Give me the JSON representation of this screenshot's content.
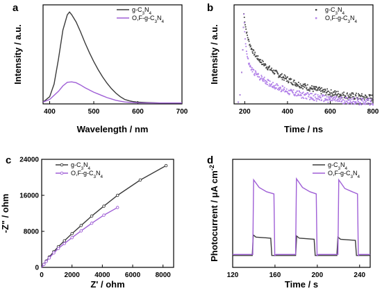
{
  "chart_data": [
    {
      "panel": "a",
      "type": "line",
      "xlabel": "Wavelength / nm",
      "ylabel": "Intensity / a.u.",
      "xlim": [
        385,
        700
      ],
      "ylim": [
        0,
        1.1
      ],
      "xticks": [
        "400",
        "500",
        "600",
        "700"
      ],
      "xtick_values": [
        400,
        500,
        600,
        700
      ],
      "yticks": [],
      "legend": "top-right",
      "series": [
        {
          "name": "g-C₃N₄",
          "color": "#3a3a3a",
          "x": [
            385,
            400,
            410,
            420,
            430,
            440,
            445,
            450,
            460,
            470,
            480,
            490,
            500,
            510,
            520,
            530,
            540,
            550,
            560,
            570,
            580,
            590,
            600,
            620,
            650,
            700
          ],
          "y": [
            0.02,
            0.08,
            0.22,
            0.5,
            0.82,
            0.99,
            1.02,
            0.99,
            0.91,
            0.8,
            0.68,
            0.57,
            0.47,
            0.38,
            0.3,
            0.23,
            0.17,
            0.12,
            0.08,
            0.05,
            0.035,
            0.025,
            0.02,
            0.015,
            0.01,
            0.01
          ]
        },
        {
          "name": "O,F-g-C₃N₄",
          "color": "#9f5fd6",
          "x": [
            385,
            400,
            420,
            430,
            440,
            450,
            460,
            470,
            480,
            490,
            500,
            510,
            520,
            530,
            540,
            550,
            560,
            570,
            580,
            600,
            650,
            700
          ],
          "y": [
            0.02,
            0.05,
            0.14,
            0.2,
            0.24,
            0.245,
            0.235,
            0.21,
            0.18,
            0.155,
            0.13,
            0.11,
            0.09,
            0.07,
            0.055,
            0.04,
            0.03,
            0.022,
            0.018,
            0.012,
            0.01,
            0.01
          ]
        }
      ]
    },
    {
      "panel": "b",
      "type": "scatter",
      "xlabel": "Time / ns",
      "ylabel": "Intensity / a.u.",
      "xlim": [
        150,
        800
      ],
      "ylim": [
        0,
        1.1
      ],
      "xticks": [
        "200",
        "400",
        "600",
        "800"
      ],
      "xtick_values": [
        200,
        400,
        600,
        800
      ],
      "yticks": [],
      "legend": "top-right",
      "series": [
        {
          "name": "g-C₃N₄",
          "color": "#444444",
          "decay_curve": {
            "t0": 196,
            "peak": 1.0,
            "amplitudes": [
              0.34,
              0.66
            ],
            "lifetimes": [
              18,
              210
            ],
            "baseline": 0.03
          }
        },
        {
          "name": "O,F-g-C₃N₄",
          "color": "#b07ee8",
          "decay_curve": {
            "t0": 196,
            "peak": 1.0,
            "amplitudes": [
              0.55,
              0.45
            ],
            "lifetimes": [
              10,
              170
            ],
            "baseline": 0.01
          }
        }
      ]
    },
    {
      "panel": "c",
      "type": "line",
      "xlabel": "Z' / ohm",
      "ylabel": "-Z\" / ohm",
      "xlim": [
        0,
        8700
      ],
      "ylim": [
        0,
        24000
      ],
      "xticks": [
        "0",
        "2000",
        "4000",
        "6000",
        "8000"
      ],
      "xtick_values": [
        0,
        2000,
        4000,
        6000,
        8000
      ],
      "yticks": [
        "0",
        "8000",
        "16000",
        "24000"
      ],
      "ytick_values": [
        0,
        8000,
        16000,
        24000
      ],
      "legend": "top-left",
      "series": [
        {
          "name": "g-C₃N₄",
          "color": "#3a3a3a",
          "x": [
            0,
            150,
            300,
            500,
            800,
            1100,
            1500,
            2000,
            2600,
            3300,
            4100,
            5000,
            6500,
            8200
          ],
          "y": [
            0,
            700,
            1400,
            2300,
            3500,
            4600,
            5900,
            7500,
            9300,
            11400,
            13600,
            16000,
            19400,
            22600
          ]
        },
        {
          "name": "O,F-g-C₃N₄",
          "color": "#9f5fd6",
          "x": [
            0,
            150,
            300,
            500,
            800,
            1100,
            1500,
            2000,
            2600,
            3300,
            4100,
            5000
          ],
          "y": [
            0,
            650,
            1300,
            2100,
            3200,
            4200,
            5300,
            6600,
            8100,
            9800,
            11600,
            13300
          ]
        }
      ]
    },
    {
      "panel": "d",
      "type": "line",
      "xlabel": "Time / s",
      "ylabel": "Photocurrent / μA cm⁻²",
      "xlim": [
        120,
        250
      ],
      "ylim": [
        0,
        1
      ],
      "xticks": [
        "120",
        "160",
        "200",
        "240"
      ],
      "xtick_values": [
        120,
        160,
        200,
        240
      ],
      "yticks": [],
      "legend": "top-right",
      "series": [
        {
          "name": "g-C₃N₄",
          "color": "#3a3a3a",
          "x": [
            120,
            138.5,
            139.5,
            142,
            156,
            157,
            158.5,
            179.5,
            180.5,
            183,
            197,
            198,
            199.5,
            218.5,
            219.5,
            222,
            236,
            237,
            238.5,
            250
          ],
          "y": [
            0.11,
            0.11,
            0.3,
            0.28,
            0.27,
            0.11,
            0.11,
            0.11,
            0.29,
            0.27,
            0.26,
            0.11,
            0.11,
            0.11,
            0.28,
            0.26,
            0.25,
            0.11,
            0.11,
            0.11
          ]
        },
        {
          "name": "O,F-g-C₃N₄",
          "color": "#9f5fd6",
          "x": [
            120,
            139,
            139.8,
            145,
            152,
            159,
            159.8,
            161,
            179.5,
            180.3,
            186,
            193,
            199,
            199.8,
            201,
            219.5,
            220.3,
            226,
            233,
            238,
            238.8,
            240,
            250
          ],
          "y": [
            0.12,
            0.12,
            0.81,
            0.74,
            0.7,
            0.68,
            0.11,
            0.12,
            0.12,
            0.82,
            0.74,
            0.7,
            0.68,
            0.11,
            0.12,
            0.12,
            0.81,
            0.73,
            0.7,
            0.68,
            0.11,
            0.12,
            0.12
          ]
        }
      ]
    }
  ]
}
